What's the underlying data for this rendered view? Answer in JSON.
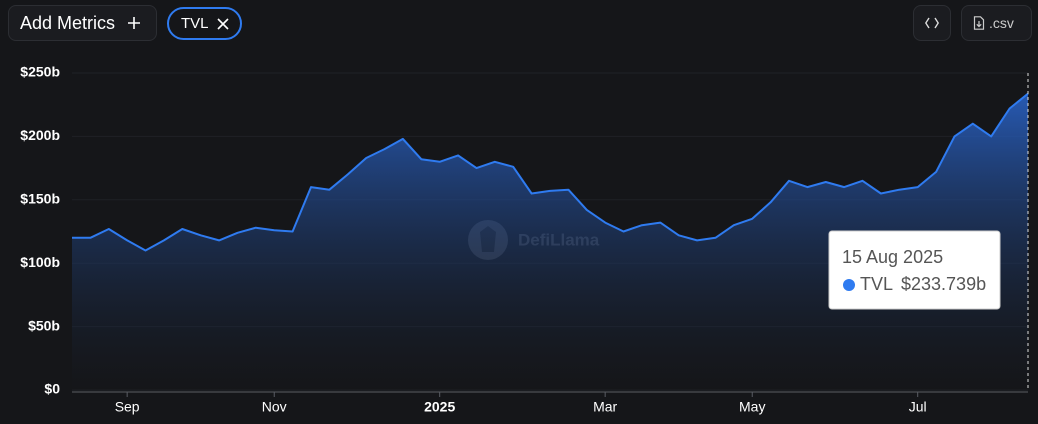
{
  "toolbar": {
    "add_metrics": "Add Metrics",
    "chip": "TVL",
    "csv": ".csv"
  },
  "watermark": "DefiLlama",
  "chart_data": {
    "type": "line",
    "fill": true,
    "grid": true,
    "categories": [
      null,
      null,
      null,
      "Sep",
      null,
      null,
      null,
      null,
      null,
      null,
      null,
      "Nov",
      null,
      null,
      null,
      null,
      null,
      null,
      null,
      null,
      "2025",
      null,
      null,
      null,
      null,
      null,
      null,
      null,
      null,
      "Mar",
      null,
      null,
      null,
      null,
      null,
      null,
      null,
      "May",
      null,
      null,
      null,
      null,
      null,
      null,
      null,
      null,
      "Jul",
      null,
      null,
      null,
      null,
      null,
      null
    ],
    "series": [
      {
        "name": "TVL",
        "color": "#2f7bf0",
        "values": [
          120,
          120,
          127,
          118,
          110,
          118,
          127,
          122,
          118,
          124,
          128,
          126,
          125,
          160,
          158,
          170,
          183,
          190,
          198,
          182,
          180,
          185,
          175,
          180,
          176,
          155,
          157,
          158,
          142,
          132,
          125,
          130,
          132,
          122,
          118,
          120,
          130,
          135,
          148,
          165,
          160,
          164,
          160,
          165,
          155,
          158,
          160,
          172,
          200,
          210,
          200,
          222,
          233.739
        ]
      }
    ],
    "ylim": [
      0,
      250
    ],
    "yticks": [
      {
        "value": 0,
        "label": "$0"
      },
      {
        "value": 50,
        "label": "$50b"
      },
      {
        "value": 100,
        "label": "$100b"
      },
      {
        "value": 150,
        "label": "$150b"
      },
      {
        "value": 200,
        "label": "$200b"
      },
      {
        "value": 250,
        "label": "$250b"
      }
    ],
    "tooltip": {
      "date": "15 Aug 2025",
      "name": "TVL",
      "value": 233.739,
      "label": "$233.739b"
    }
  }
}
